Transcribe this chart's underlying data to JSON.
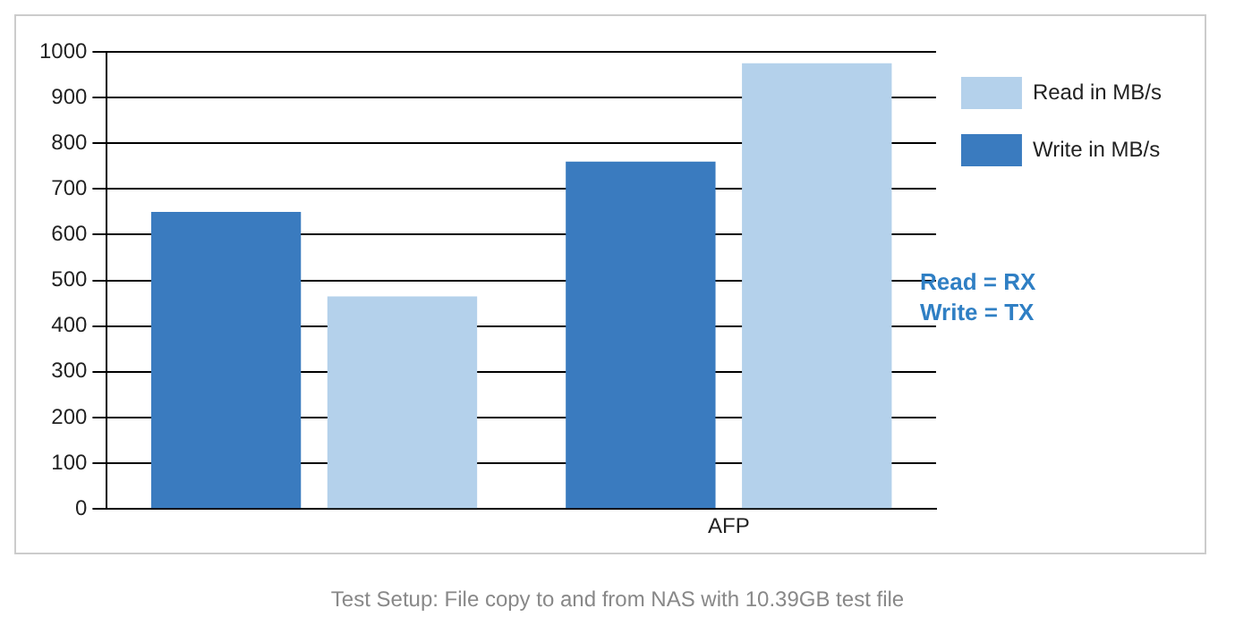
{
  "chart_data": {
    "type": "bar",
    "categories": [
      null,
      "AFP"
    ],
    "series": [
      {
        "name": "Write in MB/s",
        "color": "#3a7bbf",
        "values": [
          650,
          760
        ]
      },
      {
        "name": "Read in MB/s",
        "color": "#b4d1eb",
        "values": [
          465,
          975
        ]
      }
    ],
    "ylim": [
      0,
      1000
    ],
    "yticks": [
      0,
      100,
      200,
      300,
      400,
      500,
      600,
      700,
      800,
      900,
      1000
    ],
    "grid": "y",
    "legend": "top right",
    "annotations": [
      "Read = RX",
      "Write = TX",
      "Test Setup: File copy to and from NAS with 10.39GB test file"
    ]
  }
}
